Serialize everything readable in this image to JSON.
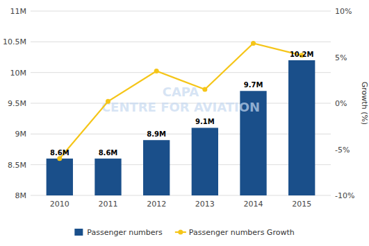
{
  "chart_data": {
    "type": "bar",
    "categories": [
      "2010",
      "2011",
      "2012",
      "2013",
      "2014",
      "2015"
    ],
    "series": [
      {
        "name": "Passenger numbers",
        "type": "bar",
        "color": "#1a4f8a",
        "values": [
          8.6,
          8.6,
          8.9,
          9.1,
          9.7,
          10.2
        ],
        "value_labels": [
          "8.6M",
          "8.6M",
          "8.9M",
          "9.1M",
          "9.7M",
          "10.2M"
        ]
      },
      {
        "name": "Passenger numbers Growth",
        "type": "line",
        "color": "#f5c518",
        "marker": "circle",
        "axis": "y2",
        "values": [
          -6.0,
          0.2,
          3.5,
          1.5,
          6.5,
          5.2
        ]
      }
    ],
    "ylim": [
      8.0,
      11.0
    ],
    "yticks": [
      {
        "value": 8.0,
        "label": "8M"
      },
      {
        "value": 8.5,
        "label": "8.5M"
      },
      {
        "value": 9.0,
        "label": "9M"
      },
      {
        "value": 9.5,
        "label": "9.5M"
      },
      {
        "value": 10.0,
        "label": "10M"
      },
      {
        "value": 10.5,
        "label": "10.5M"
      },
      {
        "value": 11.0,
        "label": "11M"
      }
    ],
    "y2lim": [
      -10,
      10
    ],
    "y2ticks": [
      {
        "value": -10,
        "label": "-10%"
      },
      {
        "value": -5,
        "label": "-5%"
      },
      {
        "value": 0,
        "label": "0%"
      },
      {
        "value": 5,
        "label": "5%"
      },
      {
        "value": 10,
        "label": "10%"
      }
    ],
    "y2label": "Growth (%)",
    "annotations": [
      "CAPA\nCENTRE FOR AVIATION"
    ],
    "grid": true,
    "legend": "bottom",
    "data_labels": true
  }
}
